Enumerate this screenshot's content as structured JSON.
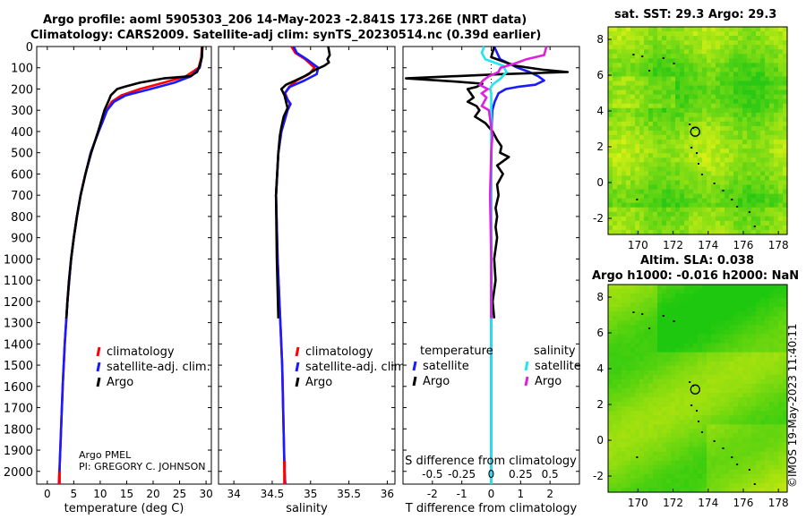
{
  "titles": {
    "line1": "Argo profile: aoml 5905303_206 14-May-2023 -2.841S 173.26E (NRT data)",
    "line2": "Climatology: CARS2009. Satellite-adj clim: synTS_20230514.nc (0.39d earlier)",
    "sst": "sat. SST: 29.3 Argo: 29.3",
    "sla1": "Altim. SLA: 0.038",
    "sla2": "Argo h1000: -0.016 h2000: NaN"
  },
  "stamp": "©IMOS 19-May-2023 11:40:11",
  "colors": {
    "climatology": "#ff0000",
    "satellite": "#1a1aff",
    "argo": "#000000",
    "sat_sal": "#22e5f0",
    "argo_sal": "#dd22dd"
  },
  "chart_data": [
    {
      "type": "line",
      "name": "temperature-profile",
      "xlabel": "temperature (deg C)",
      "ylabel": "",
      "xlim": [
        -2,
        31
      ],
      "ylim": [
        2060,
        0
      ],
      "xticks": [
        "0",
        "5",
        "10",
        "15",
        "20",
        "25",
        "30"
      ],
      "yticks": [
        "0",
        "100",
        "200",
        "300",
        "400",
        "500",
        "600",
        "700",
        "800",
        "900",
        "1000",
        "1100",
        "1200",
        "1300",
        "1400",
        "1500",
        "1600",
        "1700",
        "1800",
        "1900",
        "2000"
      ],
      "legend": [
        "climatology",
        "satellite-adj. clim.",
        "Argo"
      ],
      "annotations": [
        "Argo PMEL",
        "PI: GREGORY C. JOHNSON"
      ],
      "series": [
        {
          "name": "climatology",
          "depth": [
            0,
            50,
            100,
            140,
            170,
            200,
            230,
            260,
            300,
            350,
            400,
            500,
            600,
            700,
            800,
            900,
            1000,
            1200,
            1400,
            1600,
            1800,
            2000,
            2060
          ],
          "values": [
            29.2,
            29.1,
            28.6,
            26.2,
            22,
            17.5,
            14,
            12.2,
            11.2,
            10.5,
            9.7,
            8.2,
            7.2,
            6.3,
            5.6,
            5,
            4.5,
            3.8,
            3.3,
            2.9,
            2.6,
            2.3,
            2.2
          ]
        },
        {
          "name": "satellite-adj. clim.",
          "depth": [
            0,
            50,
            100,
            140,
            170,
            200,
            230,
            260,
            300,
            350,
            400,
            500,
            600,
            700,
            800,
            900,
            1000,
            1200,
            1400,
            1600,
            1800,
            2000,
            2060
          ],
          "values": [
            29.3,
            29.2,
            28.8,
            27.2,
            24,
            19.5,
            14.8,
            12.6,
            11.3,
            10.5,
            9.7,
            8.2,
            7.2,
            6.3,
            5.6,
            5,
            4.5,
            3.8,
            3.3,
            2.9,
            2.6,
            2.3,
            2.2
          ]
        },
        {
          "name": "Argo",
          "depth": [
            0,
            50,
            90,
            120,
            140,
            150,
            170,
            190,
            200,
            230,
            260,
            300,
            350,
            400,
            500,
            600,
            700,
            800,
            900,
            1000,
            1100,
            1200,
            1280
          ],
          "values": [
            29.3,
            29.2,
            28.8,
            28.3,
            27,
            22,
            17.5,
            14.5,
            13.2,
            12,
            11.5,
            10.8,
            10.2,
            9.6,
            8.3,
            7.2,
            6.3,
            5.6,
            5,
            4.5,
            4.1,
            3.8,
            3.6
          ]
        }
      ]
    },
    {
      "type": "line",
      "name": "salinity-profile",
      "xlabel": "salinity",
      "xlim": [
        33.8,
        36.1
      ],
      "ylim": [
        2060,
        0
      ],
      "xticks": [
        "34",
        "34.5",
        "35",
        "35.5",
        "36"
      ],
      "legend": [
        "climatology",
        "satellite-adj. clim.",
        "Argo"
      ],
      "series": [
        {
          "name": "climatology",
          "depth": [
            0,
            30,
            60,
            100,
            130,
            160,
            190,
            220,
            250,
            270,
            300,
            400,
            500,
            700,
            1000,
            1500,
            2000,
            2060
          ],
          "values": [
            34.75,
            34.8,
            34.93,
            35.05,
            34.98,
            34.82,
            34.72,
            34.67,
            34.7,
            34.73,
            34.7,
            34.62,
            34.58,
            34.55,
            34.57,
            34.63,
            34.66,
            34.67
          ]
        },
        {
          "name": "satellite-adj. clim.",
          "depth": [
            0,
            30,
            60,
            100,
            130,
            160,
            190,
            220,
            250,
            270,
            300,
            400,
            500,
            700,
            1000,
            1500,
            2000,
            2060
          ],
          "values": [
            34.78,
            34.82,
            34.95,
            35.1,
            35.08,
            34.92,
            34.73,
            34.66,
            34.7,
            34.74,
            34.7,
            34.62,
            34.58,
            34.55,
            34.57,
            34.63,
            34.66,
            34.67
          ]
        },
        {
          "name": "Argo",
          "depth": [
            0,
            40,
            60,
            75,
            90,
            110,
            140,
            160,
            180,
            200,
            230,
            260,
            290,
            330,
            380,
            420,
            500,
            700,
            1000,
            1280
          ],
          "values": [
            35.23,
            35.25,
            35.22,
            35.24,
            35.18,
            35.06,
            34.92,
            34.8,
            34.68,
            34.62,
            34.66,
            34.68,
            34.7,
            34.65,
            34.62,
            34.6,
            34.58,
            34.55,
            34.56,
            34.58
          ]
        }
      ]
    },
    {
      "type": "line",
      "name": "difference-profile",
      "xlabel": "T difference from climatology",
      "xlabel_top": "S difference from climatology",
      "xlim": [
        -3,
        3
      ],
      "ylim": [
        2060,
        0
      ],
      "xticks": [
        "-2",
        "-1",
        "0",
        "1",
        "2"
      ],
      "sticks": [
        "-0.5",
        "-0.25",
        "0",
        "0.25",
        "0.5"
      ],
      "legend_groups": [
        {
          "title": "temperature",
          "items": [
            "satellite",
            "Argo"
          ]
        },
        {
          "title": "salinity",
          "items": [
            "satellite",
            "Argo"
          ]
        }
      ],
      "series": [
        {
          "name": "temperature satellite",
          "depth": [
            0,
            60,
            100,
            120,
            140,
            160,
            180,
            190,
            200,
            220,
            260,
            300,
            350,
            400,
            600,
            1000,
            1500,
            2000,
            2060
          ],
          "values": [
            0.1,
            0.3,
            0.9,
            1.3,
            1.6,
            1.8,
            1.5,
            0.9,
            0.5,
            0.25,
            0.12,
            0.04,
            0.02,
            0.01,
            0,
            0,
            0,
            0,
            0
          ]
        },
        {
          "name": "temperature Argo",
          "depth": [
            0,
            50,
            90,
            110,
            120,
            130,
            150,
            165,
            175,
            190,
            200,
            220,
            240,
            260,
            280,
            300,
            330,
            360,
            400,
            440,
            470,
            500,
            520,
            560,
            600,
            650,
            700,
            760,
            800,
            850,
            900,
            1000,
            1100,
            1200,
            1280
          ],
          "values": [
            0.1,
            0,
            0.8,
            1.8,
            2.6,
            0.3,
            -2.9,
            -1.2,
            -0.3,
            -0.5,
            -0.8,
            -0.7,
            -0.6,
            -0.8,
            -0.5,
            -0.4,
            -0.55,
            -0.2,
            0.05,
            0.2,
            0.35,
            0.3,
            0.6,
            0.2,
            0.4,
            0.2,
            0.25,
            0.15,
            0.2,
            0.15,
            0.2,
            0.1,
            0.15,
            0.05,
            0.1
          ]
        },
        {
          "name": "salinity satellite",
          "depth": [
            0,
            30,
            60,
            90,
            120,
            150,
            180,
            200,
            220,
            250,
            300,
            400,
            500,
            1000,
            1500,
            2000,
            2060
          ],
          "values": [
            -0.06,
            -0.08,
            -0.05,
            0.1,
            0.13,
            0.08,
            0.01,
            -0.01,
            0,
            0,
            0,
            0,
            0,
            0,
            0,
            0,
            0
          ]
        },
        {
          "name": "salinity Argo",
          "depth": [
            0,
            40,
            60,
            80,
            100,
            120,
            140,
            160,
            180,
            200,
            220,
            240,
            260,
            280,
            300,
            340,
            380,
            420,
            500,
            700,
            1000,
            1280
          ],
          "values": [
            0.47,
            0.45,
            0.3,
            0.2,
            0.08,
            0.06,
            -0.02,
            -0.07,
            -0.1,
            -0.03,
            -0.08,
            -0.04,
            -0.06,
            -0.08,
            -0.02,
            -0.01,
            0,
            0.01,
            0,
            -0.01,
            0,
            0
          ]
        }
      ]
    },
    {
      "type": "heatmap",
      "name": "sst-map",
      "title": "sat. SST: 29.3 Argo: 29.3",
      "xlim": [
        168.3,
        178.5
      ],
      "ylim": [
        -2.9,
        8.7
      ],
      "xticks": [
        "170",
        "172",
        "174",
        "176",
        "178"
      ],
      "yticks": [
        "-2",
        "0",
        "2",
        "4",
        "6",
        "8"
      ],
      "marker": {
        "lon": 173.26,
        "lat": 2.84
      }
    },
    {
      "type": "heatmap",
      "name": "sla-map",
      "title": "Altim. SLA: 0.038",
      "xlim": [
        168.3,
        178.5
      ],
      "ylim": [
        -2.9,
        8.7
      ],
      "xticks": [
        "170",
        "172",
        "174",
        "176",
        "178"
      ],
      "yticks": [
        "-2",
        "0",
        "2",
        "4",
        "6",
        "8"
      ],
      "marker": {
        "lon": 173.26,
        "lat": 2.84
      }
    }
  ]
}
